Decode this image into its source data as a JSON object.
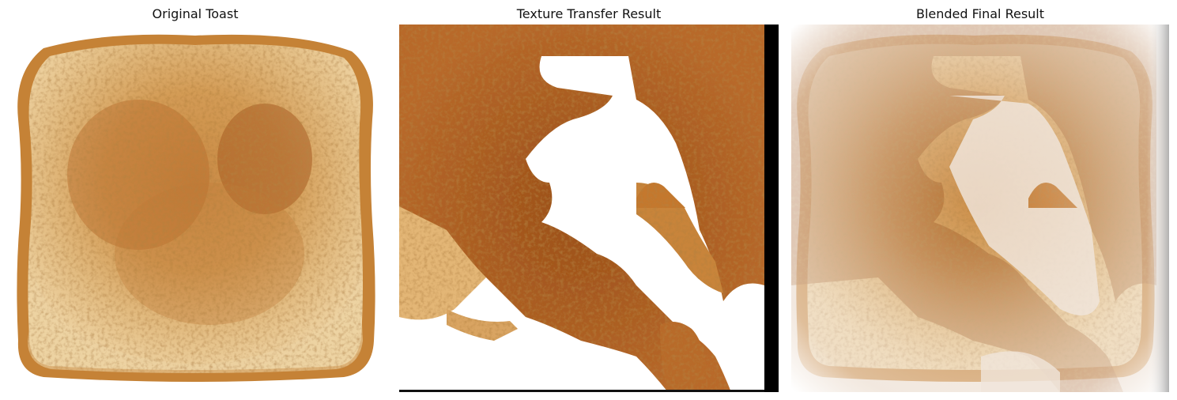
{
  "figure": {
    "panels": [
      {
        "title": "Original Toast"
      },
      {
        "title": "Texture Transfer Result"
      },
      {
        "title": "Blended Final Result"
      }
    ]
  },
  "colors": {
    "crust": "#c8843a",
    "toast_light": "#e9c894",
    "toast_mid": "#d49a52",
    "toast_dark": "#a8581f",
    "bar_black": "#000000"
  }
}
